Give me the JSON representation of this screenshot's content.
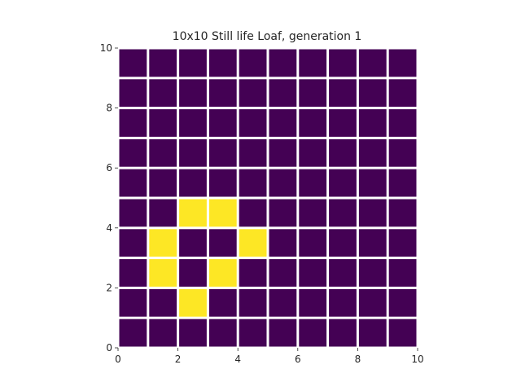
{
  "title": "10x10 Still life Loaf, generation 1",
  "colors": {
    "dead": "#440154",
    "alive": "#fde725",
    "gap": "#ffffff"
  },
  "chart_data": {
    "type": "heatmap",
    "title": "10x10 Still life Loaf, generation 1",
    "xlim": [
      0,
      10
    ],
    "ylim": [
      0,
      10
    ],
    "x_ticks": [
      "0",
      "2",
      "4",
      "6",
      "8",
      "10"
    ],
    "y_ticks": [
      "0",
      "2",
      "4",
      "6",
      "8",
      "10"
    ],
    "rows": 10,
    "cols": 10,
    "grid_top_to_bottom": [
      [
        0,
        0,
        0,
        0,
        0,
        0,
        0,
        0,
        0,
        0
      ],
      [
        0,
        0,
        0,
        0,
        0,
        0,
        0,
        0,
        0,
        0
      ],
      [
        0,
        0,
        0,
        0,
        0,
        0,
        0,
        0,
        0,
        0
      ],
      [
        0,
        0,
        0,
        0,
        0,
        0,
        0,
        0,
        0,
        0
      ],
      [
        0,
        0,
        0,
        0,
        0,
        0,
        0,
        0,
        0,
        0
      ],
      [
        0,
        0,
        1,
        1,
        0,
        0,
        0,
        0,
        0,
        0
      ],
      [
        0,
        1,
        0,
        0,
        1,
        0,
        0,
        0,
        0,
        0
      ],
      [
        0,
        1,
        0,
        1,
        0,
        0,
        0,
        0,
        0,
        0
      ],
      [
        0,
        0,
        1,
        0,
        0,
        0,
        0,
        0,
        0,
        0
      ],
      [
        0,
        0,
        0,
        0,
        0,
        0,
        0,
        0,
        0,
        0
      ]
    ]
  }
}
